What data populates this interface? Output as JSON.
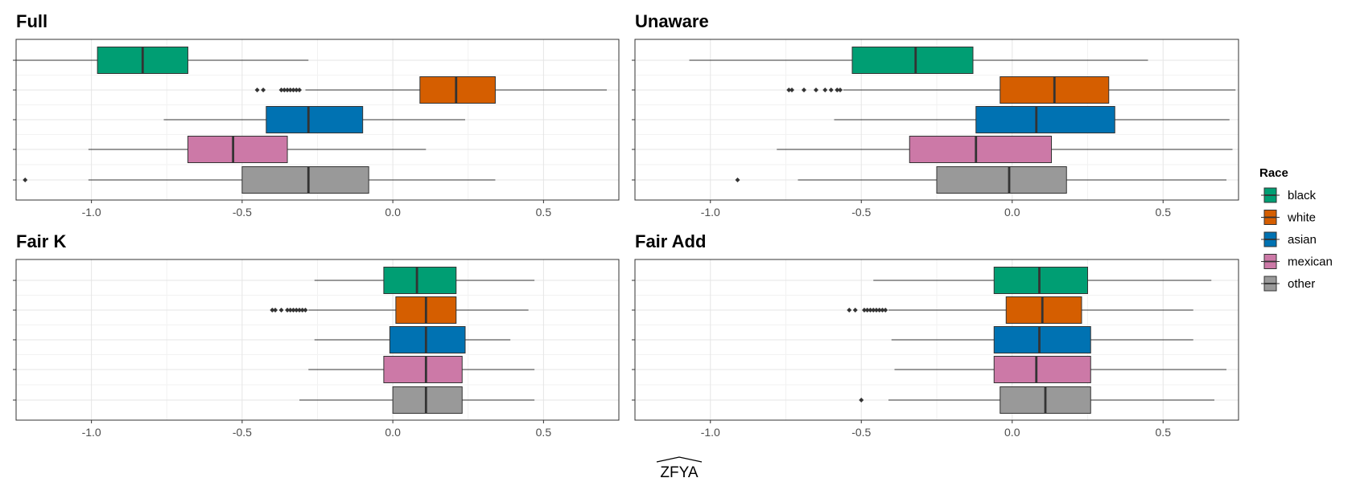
{
  "chart_data": {
    "type": "boxplot",
    "orientation": "horizontal",
    "xlabel": "ZFYA",
    "xlabel_hat": true,
    "xlim": [
      -1.25,
      0.75
    ],
    "x_ticks": [
      -1.0,
      -0.5,
      0.0,
      0.5
    ],
    "x_tick_labels": [
      "-1.0",
      "-0.5",
      "0.0",
      "0.5"
    ],
    "grid": true,
    "legend": {
      "title": "Race",
      "position": "right",
      "entries": [
        {
          "name": "black",
          "color": "#009E73"
        },
        {
          "name": "white",
          "color": "#D55E00"
        },
        {
          "name": "asian",
          "color": "#0072B2"
        },
        {
          "name": "mexican",
          "color": "#CC79A7"
        },
        {
          "name": "other",
          "color": "#999999"
        }
      ]
    },
    "panels": [
      {
        "title": "Full",
        "boxes": [
          {
            "group": "black",
            "min": -1.26,
            "q1": -0.98,
            "median": -0.83,
            "q3": -0.68,
            "max": -0.28,
            "outliers": []
          },
          {
            "group": "white",
            "min": -0.29,
            "q1": 0.09,
            "median": 0.21,
            "q3": 0.34,
            "max": 0.71,
            "outliers": [
              -0.45,
              -0.43,
              -0.37,
              -0.36,
              -0.35,
              -0.34,
              -0.33,
              -0.32,
              -0.31
            ]
          },
          {
            "group": "asian",
            "min": -0.76,
            "q1": -0.42,
            "median": -0.28,
            "q3": -0.1,
            "max": 0.24,
            "outliers": []
          },
          {
            "group": "mexican",
            "min": -1.01,
            "q1": -0.68,
            "median": -0.53,
            "q3": -0.35,
            "max": 0.11,
            "outliers": []
          },
          {
            "group": "other",
            "min": -1.01,
            "q1": -0.5,
            "median": -0.28,
            "q3": -0.08,
            "max": 0.34,
            "outliers": [
              -1.22
            ]
          }
        ]
      },
      {
        "title": "Unaware",
        "boxes": [
          {
            "group": "black",
            "min": -1.07,
            "q1": -0.53,
            "median": -0.32,
            "q3": -0.13,
            "max": 0.45,
            "outliers": []
          },
          {
            "group": "white",
            "min": -0.56,
            "q1": -0.04,
            "median": 0.14,
            "q3": 0.32,
            "max": 0.74,
            "outliers": [
              -0.74,
              -0.73,
              -0.69,
              -0.65,
              -0.62,
              -0.6,
              -0.58,
              -0.57
            ]
          },
          {
            "group": "asian",
            "min": -0.59,
            "q1": -0.12,
            "median": 0.08,
            "q3": 0.34,
            "max": 0.72,
            "outliers": []
          },
          {
            "group": "mexican",
            "min": -0.78,
            "q1": -0.34,
            "median": -0.12,
            "q3": 0.13,
            "max": 0.73,
            "outliers": []
          },
          {
            "group": "other",
            "min": -0.71,
            "q1": -0.25,
            "median": -0.01,
            "q3": 0.18,
            "max": 0.71,
            "outliers": [
              -0.91
            ]
          }
        ]
      },
      {
        "title": "Fair K",
        "boxes": [
          {
            "group": "black",
            "min": -0.26,
            "q1": -0.03,
            "median": 0.08,
            "q3": 0.21,
            "max": 0.47,
            "outliers": []
          },
          {
            "group": "white",
            "min": -0.28,
            "q1": 0.01,
            "median": 0.11,
            "q3": 0.21,
            "max": 0.45,
            "outliers": [
              -0.4,
              -0.39,
              -0.37,
              -0.35,
              -0.34,
              -0.33,
              -0.32,
              -0.31,
              -0.3,
              -0.29
            ]
          },
          {
            "group": "asian",
            "min": -0.26,
            "q1": -0.01,
            "median": 0.11,
            "q3": 0.24,
            "max": 0.39,
            "outliers": []
          },
          {
            "group": "mexican",
            "min": -0.28,
            "q1": -0.03,
            "median": 0.11,
            "q3": 0.23,
            "max": 0.47,
            "outliers": []
          },
          {
            "group": "other",
            "min": -0.31,
            "q1": 0.0,
            "median": 0.11,
            "q3": 0.23,
            "max": 0.47,
            "outliers": []
          }
        ]
      },
      {
        "title": "Fair Add",
        "boxes": [
          {
            "group": "black",
            "min": -0.46,
            "q1": -0.06,
            "median": 0.09,
            "q3": 0.25,
            "max": 0.66,
            "outliers": []
          },
          {
            "group": "white",
            "min": -0.41,
            "q1": -0.02,
            "median": 0.1,
            "q3": 0.23,
            "max": 0.6,
            "outliers": [
              -0.54,
              -0.52,
              -0.49,
              -0.48,
              -0.47,
              -0.46,
              -0.45,
              -0.44,
              -0.43,
              -0.42
            ]
          },
          {
            "group": "asian",
            "min": -0.4,
            "q1": -0.06,
            "median": 0.09,
            "q3": 0.26,
            "max": 0.6,
            "outliers": []
          },
          {
            "group": "mexican",
            "min": -0.39,
            "q1": -0.06,
            "median": 0.08,
            "q3": 0.26,
            "max": 0.71,
            "outliers": []
          },
          {
            "group": "other",
            "min": -0.41,
            "q1": -0.04,
            "median": 0.11,
            "q3": 0.26,
            "max": 0.67,
            "outliers": [
              -0.5
            ]
          }
        ]
      }
    ]
  }
}
